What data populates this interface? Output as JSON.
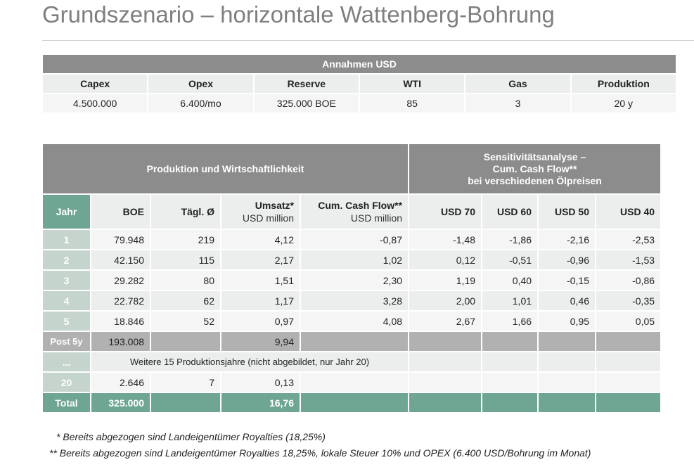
{
  "title": "Grundszenario – horizontale Wattenberg-Bohrung",
  "assumptions": {
    "header": "Annahmen USD",
    "columns": [
      "Capex",
      "Opex",
      "Reserve",
      "WTI",
      "Gas",
      "Produktion"
    ],
    "values": [
      "4.500.000",
      "6.400/mo",
      "325.000 BOE",
      "85",
      "3",
      "20 y"
    ]
  },
  "table": {
    "group1": "Produktion und Wirtschaftlichkeit",
    "group2": [
      "Sensitivitätsanalyse –",
      "Cum. Cash Flow**",
      "bei verschiedenen Ölpreisen"
    ],
    "headers": {
      "jahr": "Jahr",
      "boe": "BOE",
      "taegl": "Tägl. Ø",
      "umsatz": "Umsatz*",
      "umsatz_unit": "USD million",
      "ccf": "Cum. Cash Flow**",
      "ccf_unit": "USD million",
      "usd70": "USD 70",
      "usd60": "USD 60",
      "usd50": "USD 50",
      "usd40": "USD 40"
    },
    "rows": [
      [
        "1",
        "79.948",
        "219",
        "4,12",
        "-0,87",
        "-1,48",
        "-1,86",
        "-2,16",
        "-2,53"
      ],
      [
        "2",
        "42.150",
        "115",
        "2,17",
        "1,02",
        "0,12",
        "-0,51",
        "-0,96",
        "-1,53"
      ],
      [
        "3",
        "29.282",
        "80",
        "1,51",
        "2,30",
        "1,19",
        "0,40",
        "-0,15",
        "-0,86"
      ],
      [
        "4",
        "22.782",
        "62",
        "1,17",
        "3,28",
        "2,00",
        "1,01",
        "0,46",
        "-0,35"
      ],
      [
        "5",
        "18.846",
        "52",
        "0,97",
        "4,08",
        "2,67",
        "1,66",
        "0,95",
        "0,05"
      ]
    ],
    "post": {
      "label": "Post 5y",
      "boe": "193.008",
      "umsatz": "9,94"
    },
    "ellipsis": {
      "label": "...",
      "note": "Weitere 15 Produktionsjahre (nicht abgebildet, nur Jahr 20)"
    },
    "y20": {
      "label": "20",
      "boe": "2.646",
      "taegl": "7",
      "umsatz": "0,13"
    },
    "total": {
      "label": "Total",
      "boe": "325.000",
      "umsatz": "16,76"
    }
  },
  "footnotes": [
    "* Bereits abgezogen sind Landeigentümer Royalties (18,25%)",
    "** Bereits abgezogen sind Landeigentümer Royalties 18,25%, lokale Steuer 10% und OPEX (6.400 USD/Bohrung im Monat)"
  ],
  "colors": {
    "header_gray": "#8c8c8c",
    "accent_green": "#6fa693",
    "light_green": "#c6d4ce"
  }
}
